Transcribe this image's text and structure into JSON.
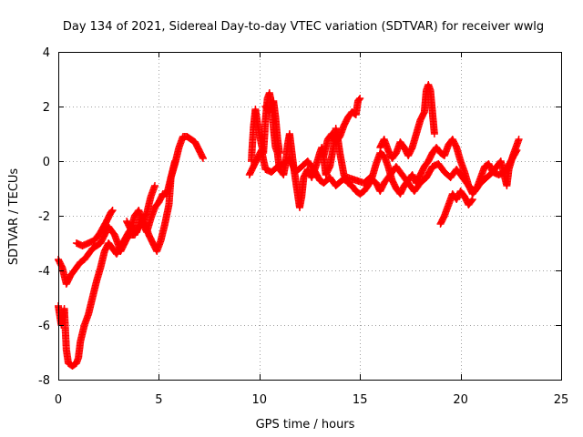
{
  "chart_data": {
    "type": "scatter",
    "title": "Day 134 of 2021, Sidereal Day-to-day VTEC variation (SDTVAR) for receiver wwlg",
    "xlabel": "GPS time / hours",
    "ylabel": "SDTVAR / TECUs",
    "xlim": [
      0,
      25
    ],
    "ylim": [
      -8,
      4
    ],
    "xticks": [
      0,
      5,
      10,
      15,
      20,
      25
    ],
    "yticks": [
      -8,
      -6,
      -4,
      -2,
      0,
      2,
      4
    ],
    "grid": true,
    "marker": "+",
    "series": [
      {
        "name": "SDTVAR",
        "color": "#ff0000",
        "segments": [
          [
            [
              0.0,
              -3.6
            ],
            [
              0.2,
              -3.9
            ],
            [
              0.4,
              -4.5
            ],
            [
              0.6,
              -4.2
            ],
            [
              0.9,
              -3.9
            ],
            [
              1.1,
              -3.7
            ],
            [
              1.3,
              -3.6
            ],
            [
              1.5,
              -3.4
            ],
            [
              1.7,
              -3.2
            ],
            [
              1.9,
              -3.1
            ],
            [
              2.1,
              -3.0
            ],
            [
              2.3,
              -2.7
            ],
            [
              2.5,
              -2.4
            ],
            [
              2.8,
              -2.7
            ],
            [
              3.1,
              -3.3
            ],
            [
              3.3,
              -3.0
            ],
            [
              3.5,
              -2.7
            ],
            [
              3.8,
              -2.7
            ],
            [
              4.0,
              -2.4
            ],
            [
              4.2,
              -2.3
            ],
            [
              4.4,
              -2.6
            ],
            [
              4.6,
              -2.1
            ],
            [
              4.8,
              -1.7
            ],
            [
              5.0,
              -1.5
            ],
            [
              5.2,
              -1.2
            ],
            [
              5.4,
              -1.2
            ],
            [
              5.6,
              -0.6
            ],
            [
              5.8,
              -0.1
            ],
            [
              6.0,
              0.5
            ],
            [
              6.2,
              0.9
            ],
            [
              6.4,
              0.9
            ],
            [
              6.6,
              0.8
            ],
            [
              6.8,
              0.7
            ],
            [
              7.0,
              0.4
            ],
            [
              7.2,
              0.1
            ]
          ],
          [
            [
              0.0,
              -5.3
            ],
            [
              0.15,
              -6.0
            ],
            [
              0.3,
              -5.4
            ],
            [
              0.4,
              -6.9
            ],
            [
              0.5,
              -7.4
            ],
            [
              0.7,
              -7.5
            ],
            [
              0.9,
              -7.4
            ],
            [
              1.0,
              -7.2
            ],
            [
              1.1,
              -6.6
            ],
            [
              1.3,
              -6.0
            ],
            [
              1.5,
              -5.6
            ],
            [
              1.7,
              -5.0
            ],
            [
              1.9,
              -4.4
            ],
            [
              2.1,
              -3.9
            ],
            [
              2.3,
              -3.3
            ],
            [
              2.5,
              -3.0
            ],
            [
              2.7,
              -3.2
            ],
            [
              2.9,
              -3.4
            ],
            [
              3.2,
              -3.0
            ],
            [
              3.5,
              -2.6
            ],
            [
              3.7,
              -2.4
            ],
            [
              3.9,
              -2.6
            ],
            [
              4.1,
              -2.1
            ],
            [
              4.3,
              -2.3
            ],
            [
              4.5,
              -2.7
            ],
            [
              4.7,
              -3.0
            ],
            [
              4.9,
              -3.3
            ],
            [
              5.1,
              -2.9
            ],
            [
              5.3,
              -2.3
            ],
            [
              5.5,
              -1.6
            ],
            [
              5.6,
              -0.6
            ],
            [
              5.8,
              0.0
            ]
          ],
          [
            [
              0.9,
              -3.0
            ],
            [
              1.2,
              -3.1
            ],
            [
              1.5,
              -3.0
            ],
            [
              1.8,
              -2.9
            ],
            [
              2.1,
              -2.6
            ],
            [
              2.4,
              -2.2
            ],
            [
              2.6,
              -1.9
            ],
            [
              2.7,
              -1.8
            ]
          ],
          [
            [
              3.4,
              -2.2
            ],
            [
              3.6,
              -2.5
            ],
            [
              3.8,
              -2.0
            ],
            [
              4.0,
              -1.8
            ],
            [
              4.2,
              -2.2
            ],
            [
              4.4,
              -1.9
            ],
            [
              4.6,
              -1.3
            ],
            [
              4.8,
              -0.9
            ]
          ],
          [
            [
              9.6,
              0.0
            ],
            [
              9.7,
              1.2
            ],
            [
              9.8,
              1.9
            ],
            [
              9.9,
              1.4
            ],
            [
              10.1,
              0.6
            ],
            [
              10.2,
              0.3
            ],
            [
              10.3,
              1.5
            ],
            [
              10.4,
              2.3
            ],
            [
              10.5,
              2.5
            ],
            [
              10.6,
              2.1
            ],
            [
              10.7,
              1.2
            ],
            [
              10.8,
              0.5
            ],
            [
              10.9,
              0.3
            ],
            [
              11.0,
              -0.3
            ],
            [
              11.2,
              -0.5
            ],
            [
              11.3,
              -0.1
            ],
            [
              11.4,
              0.6
            ],
            [
              11.5,
              1.0
            ],
            [
              11.6,
              0.4
            ],
            [
              11.7,
              -0.2
            ],
            [
              11.8,
              -0.7
            ],
            [
              11.9,
              -1.2
            ],
            [
              12.0,
              -1.7
            ],
            [
              12.1,
              -1.3
            ],
            [
              12.2,
              -0.6
            ],
            [
              12.4,
              -0.3
            ],
            [
              12.6,
              -0.6
            ],
            [
              12.8,
              -0.2
            ],
            [
              13.0,
              0.3
            ],
            [
              13.1,
              0.5
            ],
            [
              13.2,
              0.1
            ],
            [
              13.3,
              -0.5
            ],
            [
              13.5,
              -0.2
            ],
            [
              13.7,
              0.6
            ],
            [
              13.8,
              1.2
            ],
            [
              13.9,
              0.8
            ],
            [
              14.0,
              0.3
            ],
            [
              14.2,
              -0.5
            ],
            [
              14.4,
              -0.8
            ],
            [
              14.6,
              -0.9
            ],
            [
              14.8,
              -1.1
            ],
            [
              15.0,
              -1.2
            ],
            [
              15.2,
              -1.1
            ],
            [
              15.4,
              -0.9
            ],
            [
              15.6,
              -0.6
            ],
            [
              15.8,
              -0.1
            ],
            [
              16.0,
              0.3
            ],
            [
              16.2,
              0.2
            ],
            [
              16.4,
              -0.2
            ],
            [
              16.6,
              -0.7
            ],
            [
              16.8,
              -1.0
            ],
            [
              17.0,
              -1.2
            ],
            [
              17.2,
              -0.9
            ],
            [
              17.4,
              -0.7
            ],
            [
              17.6,
              -0.5
            ],
            [
              17.8,
              -0.8
            ],
            [
              18.0,
              -0.5
            ],
            [
              18.2,
              -0.2
            ],
            [
              18.4,
              0.0
            ],
            [
              18.6,
              0.3
            ],
            [
              18.8,
              0.5
            ],
            [
              19.0,
              0.3
            ],
            [
              19.2,
              0.2
            ],
            [
              19.4,
              0.6
            ],
            [
              19.6,
              0.8
            ],
            [
              19.8,
              0.5
            ],
            [
              20.0,
              0.0
            ],
            [
              20.2,
              -0.4
            ],
            [
              20.4,
              -0.9
            ],
            [
              20.6,
              -1.2
            ],
            [
              20.8,
              -1.0
            ],
            [
              21.0,
              -0.6
            ],
            [
              21.2,
              -0.2
            ],
            [
              21.4,
              -0.1
            ],
            [
              21.6,
              -0.4
            ],
            [
              21.8,
              -0.2
            ],
            [
              22.0,
              0.0
            ],
            [
              22.2,
              -0.6
            ],
            [
              22.3,
              -0.9
            ],
            [
              22.4,
              -0.3
            ],
            [
              22.6,
              0.2
            ],
            [
              22.8,
              0.6
            ],
            [
              22.9,
              0.8
            ]
          ],
          [
            [
              9.5,
              -0.5
            ],
            [
              9.7,
              -0.2
            ],
            [
              9.9,
              0.1
            ],
            [
              10.1,
              0.4
            ],
            [
              10.3,
              -0.3
            ],
            [
              10.6,
              -0.4
            ],
            [
              10.9,
              -0.2
            ],
            [
              11.2,
              -0.1
            ],
            [
              11.5,
              0.1
            ],
            [
              11.8,
              -0.4
            ],
            [
              12.1,
              -0.2
            ],
            [
              12.4,
              0.0
            ],
            [
              12.7,
              -0.3
            ],
            [
              13.0,
              -0.7
            ],
            [
              13.2,
              -0.8
            ],
            [
              13.5,
              -0.6
            ],
            [
              13.8,
              -0.9
            ],
            [
              14.1,
              -0.7
            ],
            [
              14.4,
              -0.6
            ],
            [
              14.8,
              -0.7
            ],
            [
              15.2,
              -0.8
            ],
            [
              15.5,
              -0.6
            ],
            [
              15.8,
              -0.8
            ],
            [
              16.0,
              -1.1
            ],
            [
              16.2,
              -0.8
            ],
            [
              16.5,
              -0.5
            ],
            [
              16.8,
              -0.2
            ],
            [
              17.1,
              -0.5
            ],
            [
              17.4,
              -0.8
            ],
            [
              17.7,
              -1.1
            ],
            [
              18.0,
              -0.8
            ],
            [
              18.3,
              -0.6
            ],
            [
              18.6,
              -0.2
            ],
            [
              18.9,
              -0.1
            ],
            [
              19.2,
              -0.4
            ],
            [
              19.5,
              -0.6
            ],
            [
              19.8,
              -0.3
            ],
            [
              20.1,
              -0.6
            ],
            [
              20.4,
              -0.9
            ],
            [
              20.7,
              -1.1
            ],
            [
              21.0,
              -0.8
            ],
            [
              21.3,
              -0.6
            ],
            [
              21.6,
              -0.4
            ],
            [
              21.9,
              -0.5
            ],
            [
              22.2,
              -0.4
            ],
            [
              22.5,
              0.0
            ],
            [
              22.8,
              0.4
            ]
          ],
          [
            [
              10.3,
              2.0
            ],
            [
              10.5,
              1.8
            ],
            [
              10.7,
              2.2
            ],
            [
              10.8,
              1.6
            ],
            [
              10.9,
              0.8
            ],
            [
              11.0,
              0.3
            ]
          ],
          [
            [
              13.2,
              0.2
            ],
            [
              13.4,
              0.8
            ],
            [
              13.6,
              1.0
            ],
            [
              13.8,
              0.7
            ],
            [
              14.0,
              0.9
            ],
            [
              14.2,
              1.3
            ],
            [
              14.4,
              1.6
            ],
            [
              14.6,
              1.8
            ],
            [
              14.8,
              1.7
            ],
            [
              14.9,
              2.2
            ],
            [
              15.0,
              2.3
            ]
          ],
          [
            [
              16.0,
              0.5
            ],
            [
              16.2,
              0.8
            ],
            [
              16.4,
              0.4
            ],
            [
              16.6,
              0.1
            ],
            [
              16.8,
              0.3
            ],
            [
              17.0,
              0.7
            ],
            [
              17.2,
              0.5
            ],
            [
              17.4,
              0.2
            ],
            [
              17.6,
              0.5
            ],
            [
              17.8,
              1.0
            ],
            [
              18.0,
              1.5
            ],
            [
              18.2,
              1.8
            ],
            [
              18.3,
              2.6
            ],
            [
              18.4,
              2.8
            ],
            [
              18.5,
              2.6
            ],
            [
              18.6,
              1.8
            ],
            [
              18.7,
              1.0
            ]
          ],
          [
            [
              19.0,
              -2.3
            ],
            [
              19.2,
              -2.0
            ],
            [
              19.4,
              -1.6
            ],
            [
              19.6,
              -1.2
            ],
            [
              19.8,
              -1.4
            ],
            [
              20.0,
              -1.1
            ],
            [
              20.2,
              -1.3
            ],
            [
              20.4,
              -1.6
            ],
            [
              20.6,
              -1.4
            ]
          ]
        ]
      }
    ]
  }
}
